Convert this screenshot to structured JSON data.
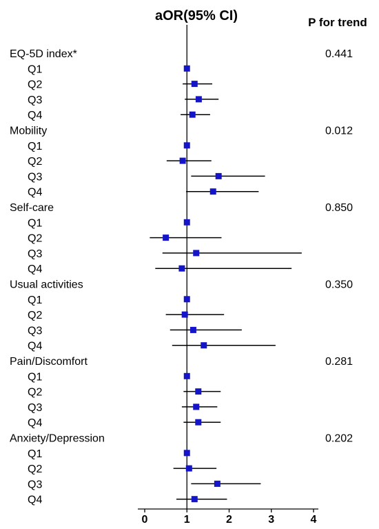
{
  "chart_data": {
    "type": "forest",
    "title": "aOR(95% CI)",
    "p_column_title": "P for trend",
    "reference_value": 1,
    "xlim": [
      -0.1,
      4.1
    ],
    "x_ticks": [
      0,
      1,
      2,
      3,
      4
    ],
    "marker_color": "#1414c8",
    "groups": [
      {
        "name": "EQ-5D index*",
        "p_value": "0.441",
        "rows": [
          {
            "label": "Q1",
            "or": 1.0,
            "lo": 1.0,
            "hi": 1.0
          },
          {
            "label": "Q2",
            "or": 1.18,
            "lo": 0.9,
            "hi": 1.6
          },
          {
            "label": "Q3",
            "or": 1.28,
            "lo": 0.95,
            "hi": 1.75
          },
          {
            "label": "Q4",
            "or": 1.13,
            "lo": 0.85,
            "hi": 1.55
          }
        ]
      },
      {
        "name": "Mobility",
        "p_value": "0.012",
        "rows": [
          {
            "label": "Q1",
            "or": 1.0,
            "lo": 1.0,
            "hi": 1.0
          },
          {
            "label": "Q2",
            "or": 0.9,
            "lo": 0.52,
            "hi": 1.58
          },
          {
            "label": "Q3",
            "or": 1.75,
            "lo": 1.1,
            "hi": 2.85
          },
          {
            "label": "Q4",
            "or": 1.62,
            "lo": 0.98,
            "hi": 2.7
          }
        ]
      },
      {
        "name": "Self-care",
        "p_value": "0.850",
        "rows": [
          {
            "label": "Q1",
            "or": 1.0,
            "lo": 1.0,
            "hi": 1.0
          },
          {
            "label": "Q2",
            "or": 0.5,
            "lo": 0.12,
            "hi": 1.82
          },
          {
            "label": "Q3",
            "or": 1.22,
            "lo": 0.42,
            "hi": 3.72
          },
          {
            "label": "Q4",
            "or": 0.88,
            "lo": 0.25,
            "hi": 3.48
          }
        ]
      },
      {
        "name": "Usual activities",
        "p_value": "0.350",
        "rows": [
          {
            "label": "Q1",
            "or": 1.0,
            "lo": 1.0,
            "hi": 1.0
          },
          {
            "label": "Q2",
            "or": 0.95,
            "lo": 0.5,
            "hi": 1.88
          },
          {
            "label": "Q3",
            "or": 1.15,
            "lo": 0.6,
            "hi": 2.3
          },
          {
            "label": "Q4",
            "or": 1.4,
            "lo": 0.65,
            "hi": 3.1
          }
        ]
      },
      {
        "name": "Pain/Discomfort",
        "p_value": "0.281",
        "rows": [
          {
            "label": "Q1",
            "or": 1.0,
            "lo": 1.0,
            "hi": 1.0
          },
          {
            "label": "Q2",
            "or": 1.27,
            "lo": 0.92,
            "hi": 1.8
          },
          {
            "label": "Q3",
            "or": 1.22,
            "lo": 0.88,
            "hi": 1.72
          },
          {
            "label": "Q4",
            "or": 1.27,
            "lo": 0.92,
            "hi": 1.8
          }
        ]
      },
      {
        "name": "Anxiety/Depression",
        "p_value": "0.202",
        "rows": [
          {
            "label": "Q1",
            "or": 1.0,
            "lo": 1.0,
            "hi": 1.0
          },
          {
            "label": "Q2",
            "or": 1.05,
            "lo": 0.68,
            "hi": 1.7
          },
          {
            "label": "Q3",
            "or": 1.72,
            "lo": 1.1,
            "hi": 2.75
          },
          {
            "label": "Q4",
            "or": 1.18,
            "lo": 0.75,
            "hi": 1.95
          }
        ]
      }
    ]
  }
}
